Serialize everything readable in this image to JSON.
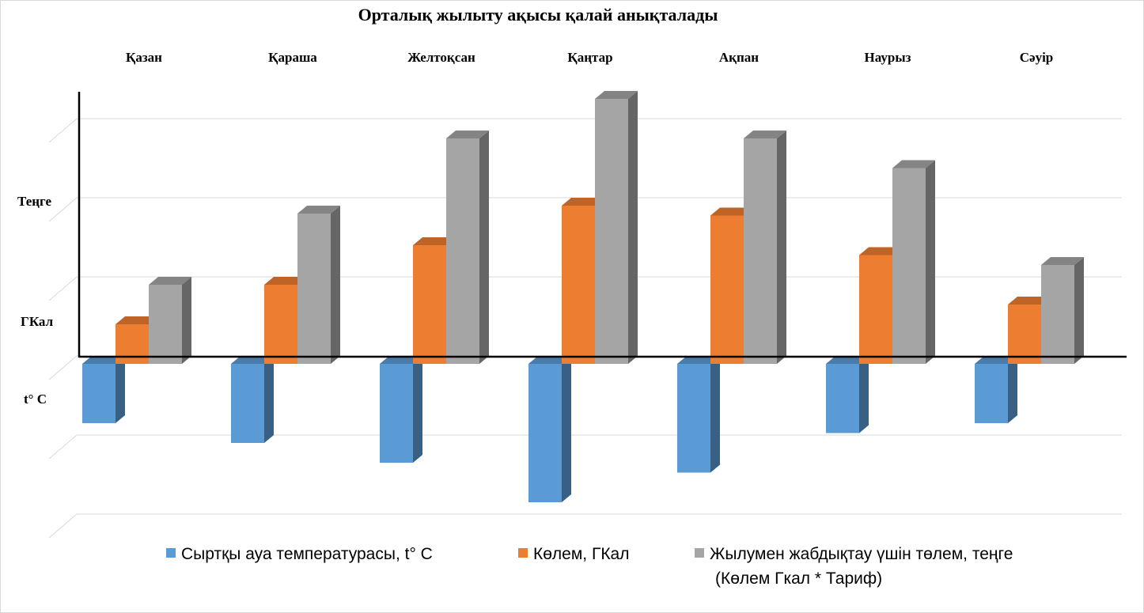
{
  "chart_data": {
    "type": "bar",
    "title": "Орталық жылыту ақысы қалай анықталады",
    "categories": [
      "Қазан",
      "Қараша",
      "Желтоқсан",
      "Қаңтар",
      "Ақпан",
      "Наурыз",
      "Сәуір"
    ],
    "axis_labels": {
      "upper": "Теңге",
      "middle": "ГКал",
      "lower": "t° C"
    },
    "series": [
      {
        "name": "Сыртқы ауа температурасы, t° C",
        "color": "#5b9bd5",
        "values": [
          -3,
          -4,
          -5,
          -7,
          -5.5,
          -3.5,
          -3
        ]
      },
      {
        "name": "Көлем, ГКал",
        "color": "#ed7d31",
        "values": [
          2,
          4,
          6,
          8,
          7.5,
          5.5,
          3
        ]
      },
      {
        "name": "Жылумен жабдықтау үшін төлем, теңге",
        "name_line2": "(Көлем Гкал * Тариф)",
        "color": "#a5a5a5",
        "values": [
          4,
          7.6,
          11.4,
          13.4,
          11.4,
          9.9,
          5
        ]
      }
    ],
    "ylim": [
      -10,
      14
    ],
    "grid": true,
    "legend_position": "bottom"
  }
}
